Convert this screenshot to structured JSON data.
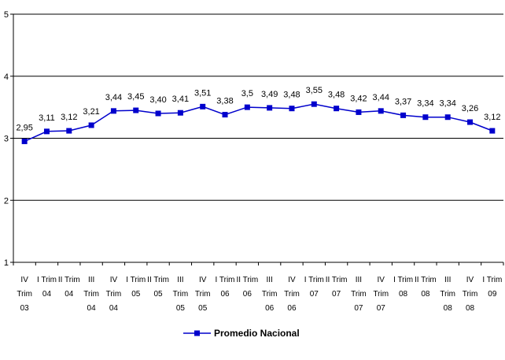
{
  "chart_data": {
    "type": "line",
    "categories": [
      [
        "IV",
        "Trim",
        "03"
      ],
      [
        "I Trim",
        "04"
      ],
      [
        "II Trim",
        "04"
      ],
      [
        "III",
        "Trim",
        "04"
      ],
      [
        "IV",
        "Trim",
        "04"
      ],
      [
        "I Trim",
        "05"
      ],
      [
        "II Trim",
        "05"
      ],
      [
        "III",
        "Trim",
        "05"
      ],
      [
        "IV",
        "Trim",
        "05"
      ],
      [
        "I Trim",
        "06"
      ],
      [
        "II Trim",
        "06"
      ],
      [
        "III",
        "Trim",
        "06"
      ],
      [
        "IV",
        "Trim",
        "06"
      ],
      [
        "I Trim",
        "07"
      ],
      [
        "II Trim",
        "07"
      ],
      [
        "III",
        "Trim",
        "07"
      ],
      [
        "IV",
        "Trim",
        "07"
      ],
      [
        "I Trim",
        "08"
      ],
      [
        "II Trim",
        "08"
      ],
      [
        "III",
        "Trim",
        "08"
      ],
      [
        "IV",
        "Trim",
        "08"
      ],
      [
        "I Trim",
        "09"
      ]
    ],
    "series": [
      {
        "name": "Promedio Nacional",
        "values": [
          2.95,
          3.11,
          3.12,
          3.21,
          3.44,
          3.45,
          3.4,
          3.41,
          3.51,
          3.38,
          3.5,
          3.49,
          3.48,
          3.55,
          3.48,
          3.42,
          3.44,
          3.37,
          3.34,
          3.34,
          3.26,
          3.12
        ],
        "labels": [
          "2,95",
          "3,11",
          "3,12",
          "3,21",
          "3,44",
          "3,45",
          "3,40",
          "3,41",
          "3,51",
          "3,38",
          "3,5",
          "3,49",
          "3,48",
          "3,55",
          "3,48",
          "3,42",
          "3,44",
          "3,37",
          "3,34",
          "3,34",
          "3,26",
          "3,12"
        ],
        "color": "#0000CC"
      }
    ],
    "ylim": [
      1,
      5
    ],
    "yticks": [
      "1",
      "2",
      "3",
      "4",
      "5"
    ],
    "grid": true,
    "legend_position": "bottom"
  }
}
